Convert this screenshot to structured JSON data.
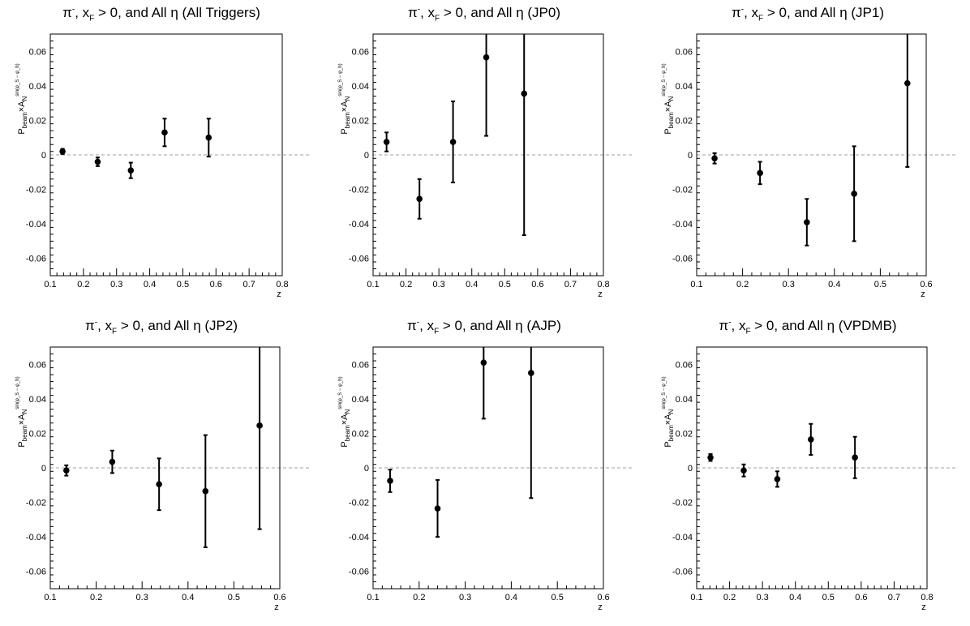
{
  "chart_data": [
    {
      "type": "scatter",
      "title": {
        "particle": "π",
        "charge": "-",
        "x": "x",
        "x_sub": "F",
        "mid": " > 0, and All ",
        "eta": "η",
        "trigger": " (All Triggers)"
      },
      "xlabel": "z",
      "ylabel": {
        "p": "P",
        "p_sub": "beam",
        "times": "×A",
        "a_sub": "N",
        "a_sup": "sin(φ_S − φ_h)"
      },
      "xlim": [
        0.1,
        0.8
      ],
      "ylim": [
        -0.07,
        0.07
      ],
      "xticks": [
        "0.1",
        "0.2",
        "0.3",
        "0.4",
        "0.5",
        "0.6",
        "0.7",
        "0.8"
      ],
      "xtick_values": [
        0.1,
        0.2,
        0.3,
        0.4,
        0.5,
        0.6,
        0.7,
        0.8
      ],
      "yticks": [
        "-0.06",
        "-0.04",
        "-0.02",
        "0",
        "0.02",
        "0.04",
        "0.06"
      ],
      "ytick_values": [
        -0.06,
        -0.04,
        -0.02,
        0,
        0.02,
        0.04,
        0.06
      ],
      "x": [
        0.137,
        0.243,
        0.343,
        0.445,
        0.578
      ],
      "y": [
        0.002,
        -0.004,
        -0.009,
        0.013,
        0.01
      ],
      "yerr": [
        0.0015,
        0.0025,
        0.0045,
        0.008,
        0.011
      ]
    },
    {
      "type": "scatter",
      "title": {
        "particle": "π",
        "charge": "-",
        "x": "x",
        "x_sub": "F",
        "mid": " > 0, and All ",
        "eta": "η",
        "trigger": " (JP0)"
      },
      "xlabel": "z",
      "ylabel": {
        "p": "P",
        "p_sub": "beam",
        "times": "×A",
        "a_sub": "N",
        "a_sup": "sin(φ_S − φ_h)"
      },
      "xlim": [
        0.1,
        0.8
      ],
      "ylim": [
        -0.07,
        0.07
      ],
      "xticks": [
        "0.1",
        "0.2",
        "0.3",
        "0.4",
        "0.5",
        "0.6",
        "0.7",
        "0.8"
      ],
      "xtick_values": [
        0.1,
        0.2,
        0.3,
        0.4,
        0.5,
        0.6,
        0.7,
        0.8
      ],
      "yticks": [
        "-0.06",
        "-0.04",
        "-0.02",
        "0",
        "0.02",
        "0.04",
        "0.06"
      ],
      "ytick_values": [
        -0.06,
        -0.04,
        -0.02,
        0,
        0.02,
        0.04,
        0.06
      ],
      "x": [
        0.141,
        0.241,
        0.343,
        0.444,
        0.559
      ],
      "y": [
        0.0075,
        -0.0255,
        0.0075,
        0.0565,
        0.0355
      ],
      "yerr": [
        0.0055,
        0.0115,
        0.0235,
        0.0455,
        0.082
      ]
    },
    {
      "type": "scatter",
      "title": {
        "particle": "π",
        "charge": "-",
        "x": "x",
        "x_sub": "F",
        "mid": " > 0, and All ",
        "eta": "η",
        "trigger": " (JP1)"
      },
      "xlabel": "z",
      "ylabel": {
        "p": "P",
        "p_sub": "beam",
        "times": "×A",
        "a_sub": "N",
        "a_sup": "sin(φ_S − φ_h)"
      },
      "xlim": [
        0.1,
        0.6
      ],
      "ylim": [
        -0.07,
        0.07
      ],
      "xticks": [
        "0.1",
        "0.2",
        "0.3",
        "0.4",
        "0.5",
        "0.6"
      ],
      "xtick_values": [
        0.1,
        0.2,
        0.3,
        0.4,
        0.5,
        0.6
      ],
      "yticks": [
        "-0.06",
        "-0.04",
        "-0.02",
        "0",
        "0.02",
        "0.04",
        "0.06"
      ],
      "ytick_values": [
        -0.06,
        -0.04,
        -0.02,
        0,
        0.02,
        0.04,
        0.06
      ],
      "x": [
        0.139,
        0.238,
        0.34,
        0.443,
        0.559
      ],
      "y": [
        -0.002,
        -0.0105,
        -0.039,
        -0.0225,
        0.0415
      ],
      "yerr": [
        0.003,
        0.0065,
        0.0135,
        0.0275,
        0.0485
      ]
    },
    {
      "type": "scatter",
      "title": {
        "particle": "π",
        "charge": "-",
        "x": "x",
        "x_sub": "F",
        "mid": " > 0, and All ",
        "eta": "η",
        "trigger": " (JP2)"
      },
      "xlabel": "z",
      "ylabel": {
        "p": "P",
        "p_sub": "beam",
        "times": "×A",
        "a_sub": "N",
        "a_sup": "sin(φ_S − φ_h)"
      },
      "xlim": [
        0.1,
        0.6
      ],
      "ylim": [
        -0.07,
        0.07
      ],
      "xticks": [
        "0.1",
        "0.2",
        "0.3",
        "0.4",
        "0.5",
        "0.6"
      ],
      "xtick_values": [
        0.1,
        0.2,
        0.3,
        0.4,
        0.5,
        0.6
      ],
      "yticks": [
        "-0.06",
        "-0.04",
        "-0.02",
        "0",
        "0.02",
        "0.04",
        "0.06"
      ],
      "ytick_values": [
        -0.06,
        -0.04,
        -0.02,
        0,
        0.02,
        0.04,
        0.06
      ],
      "x": [
        0.135,
        0.235,
        0.337,
        0.438,
        0.556
      ],
      "y": [
        -0.0015,
        0.0035,
        -0.0095,
        -0.0135,
        0.0245
      ],
      "yerr": [
        0.003,
        0.0065,
        0.015,
        0.0325,
        0.06
      ]
    },
    {
      "type": "scatter",
      "title": {
        "particle": "π",
        "charge": "-",
        "x": "x",
        "x_sub": "F",
        "mid": " > 0, and All ",
        "eta": "η",
        "trigger": " (AJP)"
      },
      "xlabel": "z",
      "ylabel": {
        "p": "P",
        "p_sub": "beam",
        "times": "×A",
        "a_sub": "N",
        "a_sup": "sin(φ_S − φ_h)"
      },
      "xlim": [
        0.1,
        0.6
      ],
      "ylim": [
        -0.07,
        0.07
      ],
      "xticks": [
        "0.1",
        "0.2",
        "0.3",
        "0.4",
        "0.5",
        "0.6"
      ],
      "xtick_values": [
        0.1,
        0.2,
        0.3,
        0.4,
        0.5,
        0.6
      ],
      "yticks": [
        "-0.06",
        "-0.04",
        "-0.02",
        "0",
        "0.02",
        "0.04",
        "0.06"
      ],
      "ytick_values": [
        -0.06,
        -0.04,
        -0.02,
        0,
        0.02,
        0.04,
        0.06
      ],
      "x": [
        0.137,
        0.24,
        0.34,
        0.443
      ],
      "y": [
        -0.0075,
        -0.0235,
        0.061,
        0.055
      ],
      "yerr": [
        0.0065,
        0.0165,
        0.0325,
        0.0725
      ]
    },
    {
      "type": "scatter",
      "title": {
        "particle": "π",
        "charge": "-",
        "x": "x",
        "x_sub": "F",
        "mid": " > 0, and All ",
        "eta": "η",
        "trigger": " (VPDMB)"
      },
      "xlabel": "z",
      "ylabel": {
        "p": "P",
        "p_sub": "beam",
        "times": "×A",
        "a_sub": "N",
        "a_sup": "sin(φ_S − φ_h)"
      },
      "xlim": [
        0.1,
        0.8
      ],
      "ylim": [
        -0.07,
        0.07
      ],
      "xticks": [
        "0.1",
        "0.2",
        "0.3",
        "0.4",
        "0.5",
        "0.6",
        "0.7",
        "0.8"
      ],
      "xtick_values": [
        0.1,
        0.2,
        0.3,
        0.4,
        0.5,
        0.6,
        0.7,
        0.8
      ],
      "yticks": [
        "-0.06",
        "-0.04",
        "-0.02",
        "0",
        "0.02",
        "0.04",
        "0.06"
      ],
      "ytick_values": [
        -0.06,
        -0.04,
        -0.02,
        0,
        0.02,
        0.04,
        0.06
      ],
      "x": [
        0.142,
        0.243,
        0.345,
        0.447,
        0.581
      ],
      "y": [
        0.006,
        -0.0015,
        -0.0065,
        0.0165,
        0.006
      ],
      "yerr": [
        0.002,
        0.0035,
        0.0045,
        0.009,
        0.012
      ]
    }
  ],
  "colors": {
    "marker": "#000000",
    "axis": "#000000",
    "zero_line": "#b4b4b4",
    "background": "#ffffff"
  }
}
